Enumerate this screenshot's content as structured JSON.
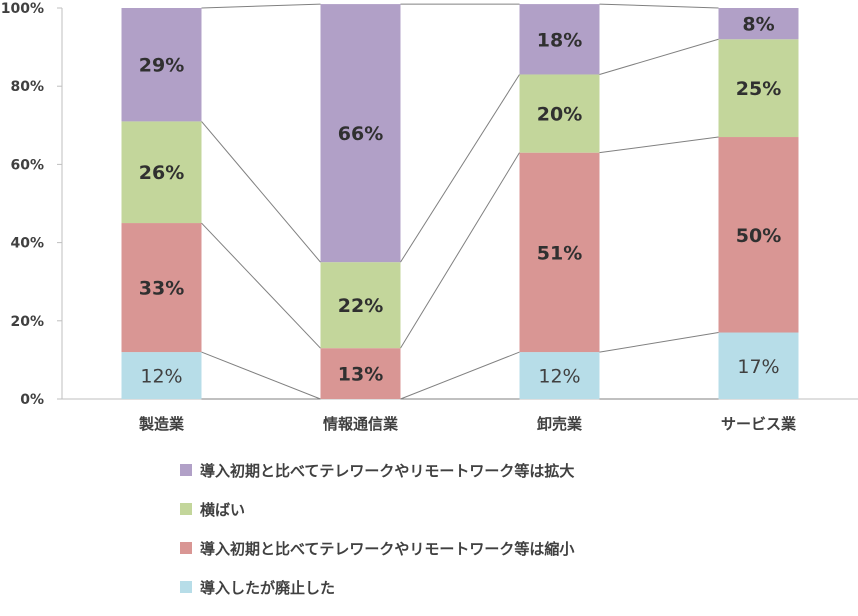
{
  "chart_data": {
    "type": "bar",
    "stacked": true,
    "normalized": true,
    "categories": [
      "製造業",
      "情報通信業",
      "卸売業",
      "サービス業"
    ],
    "yticks": [
      "0%",
      "20%",
      "40%",
      "60%",
      "80%",
      "100%"
    ],
    "ylim": [
      0,
      100
    ],
    "grid": false,
    "series_connectors": true,
    "legend_position": "bottom",
    "series": [
      {
        "name": "導入したが廃止した",
        "color": "#b7dde8",
        "values": [
          12,
          0,
          12,
          17
        ],
        "labels": [
          "12%",
          "",
          "12%",
          "17%"
        ]
      },
      {
        "name": "導入初期と比べてテレワークやリモートワーク等は縮小",
        "color": "#d99694",
        "values": [
          33,
          13,
          51,
          50
        ],
        "labels": [
          "33%",
          "13%",
          "51%",
          "50%"
        ]
      },
      {
        "name": "横ばい",
        "color": "#c3d69b",
        "values": [
          26,
          22,
          20,
          25
        ],
        "labels": [
          "26%",
          "22%",
          "20%",
          "25%"
        ]
      },
      {
        "name": "導入初期と比べてテレワークやリモートワーク等は拡大",
        "color": "#b1a0c7",
        "values": [
          29,
          66,
          18,
          8
        ],
        "labels": [
          "29%",
          "66%",
          "18%",
          "8%"
        ]
      }
    ],
    "legend_order": [
      3,
      2,
      1,
      0
    ]
  }
}
